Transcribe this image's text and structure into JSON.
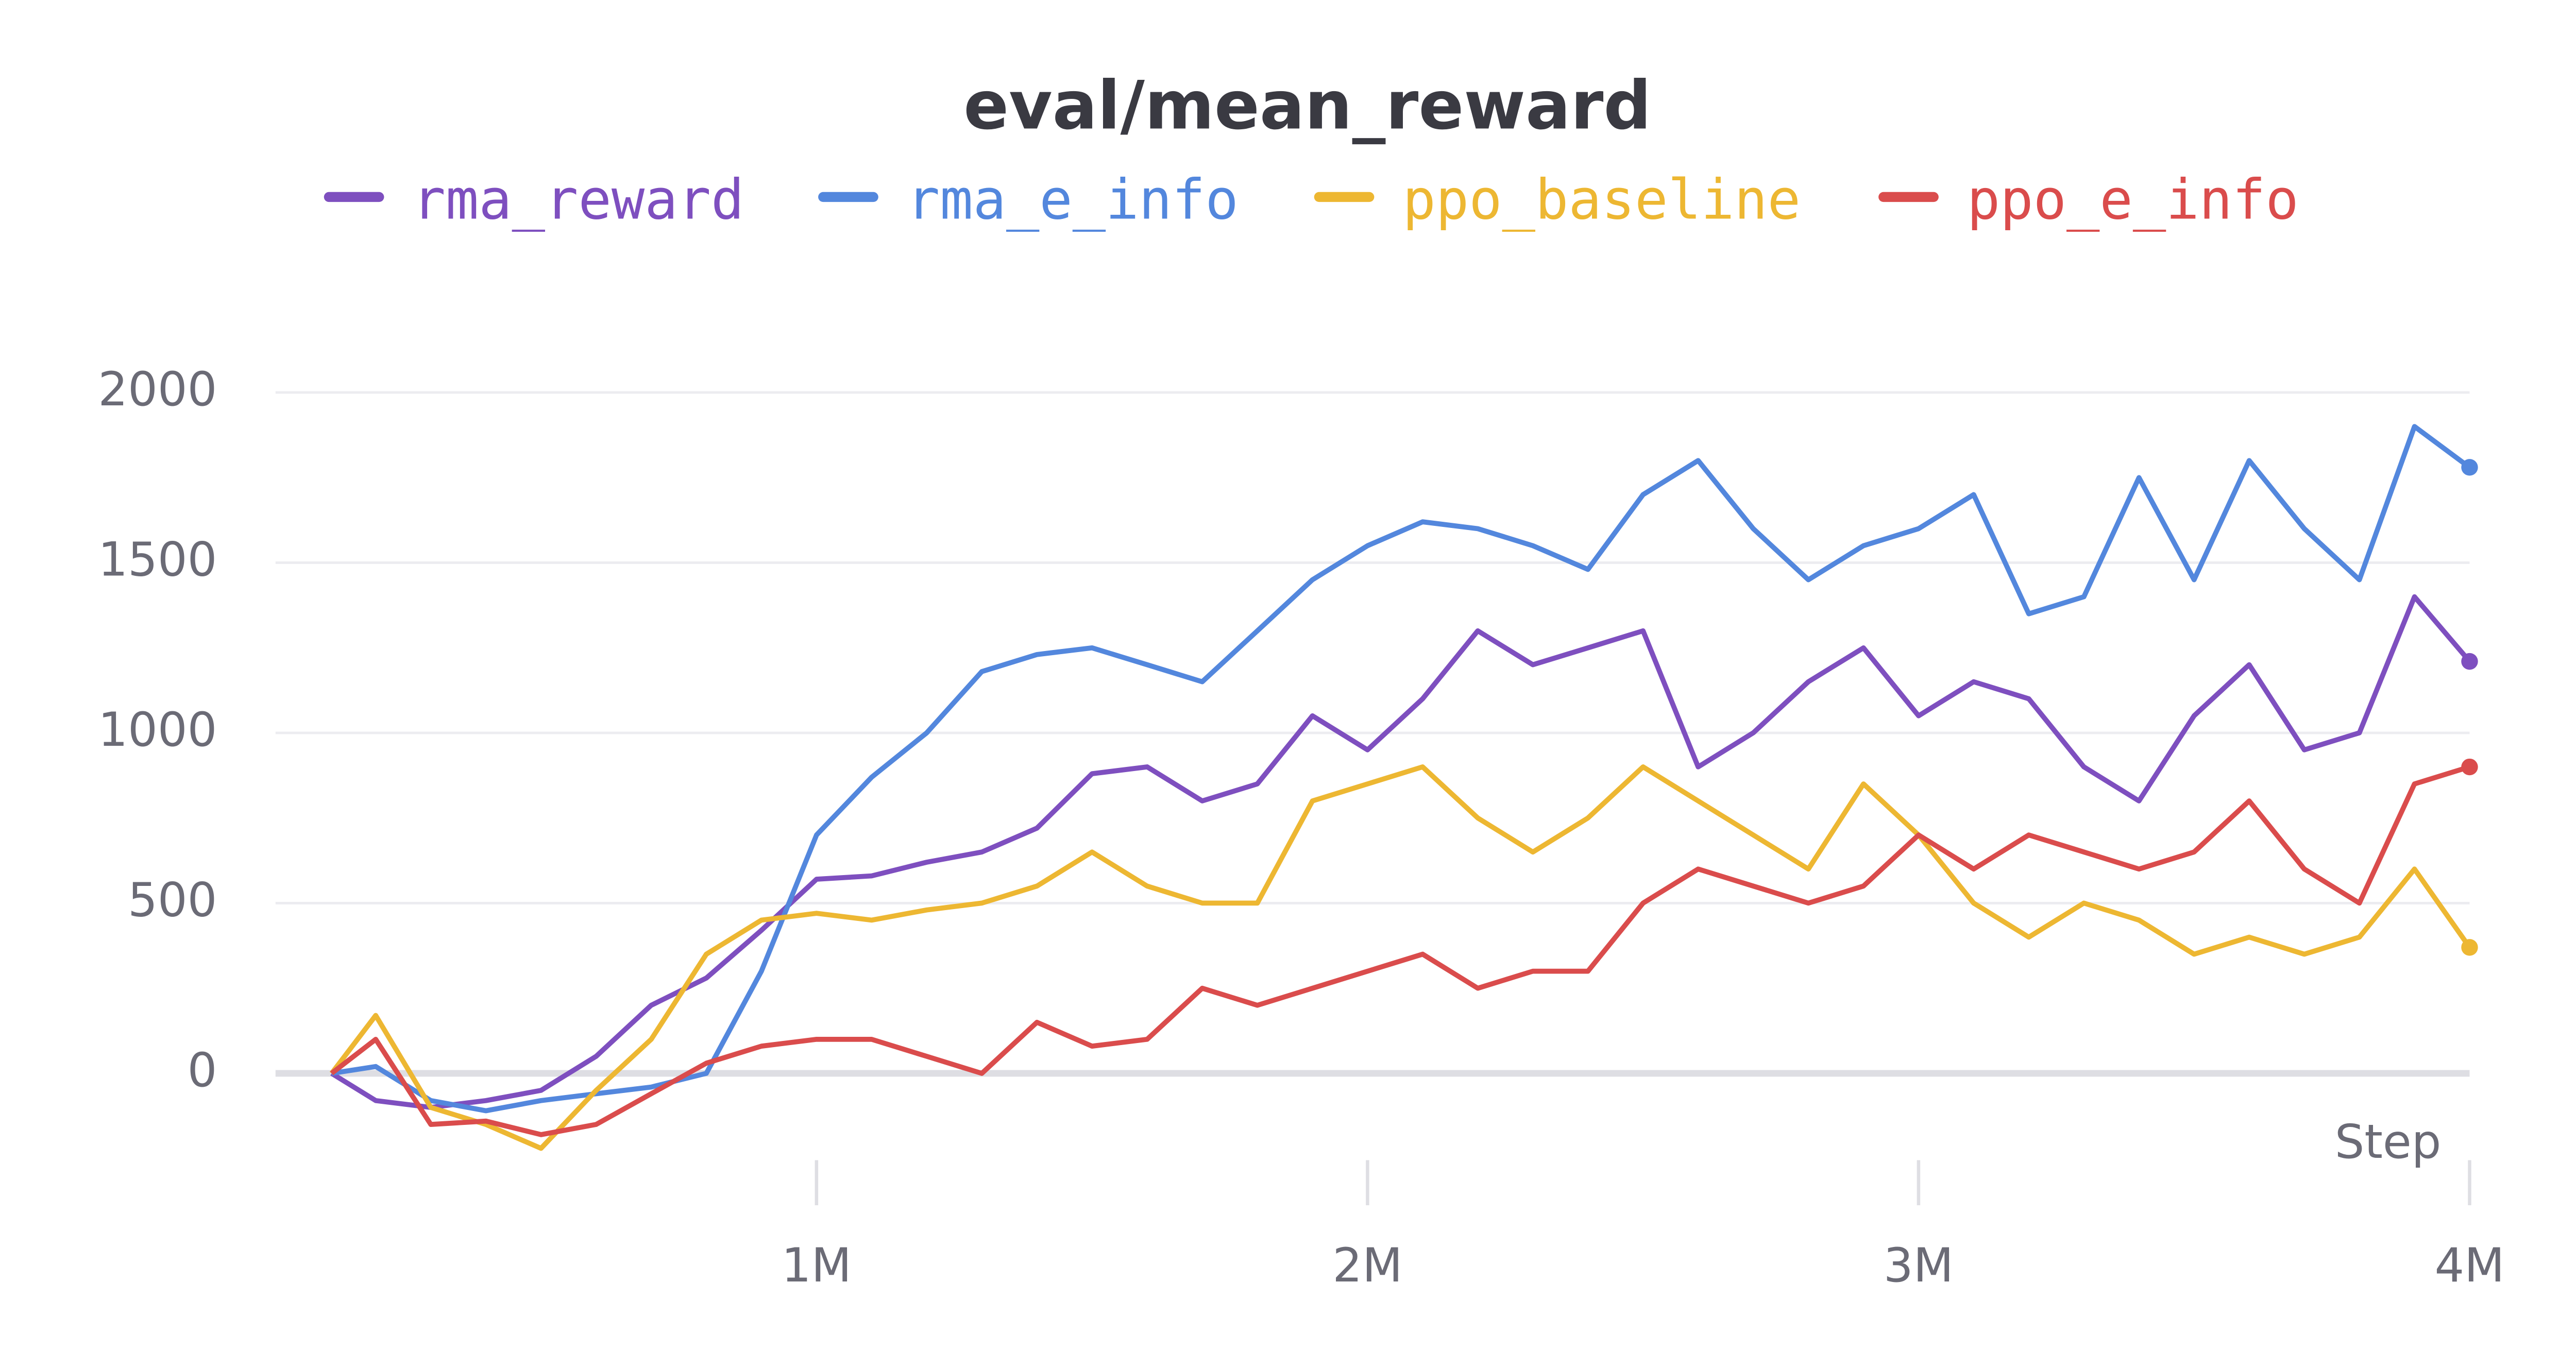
{
  "chart_data": {
    "type": "line",
    "title": "eval/mean_reward",
    "x_label": "Step",
    "x": [
      120000,
      200000,
      300000,
      400000,
      500000,
      600000,
      700000,
      800000,
      900000,
      1000000,
      1100000,
      1200000,
      1300000,
      1400000,
      1500000,
      1600000,
      1700000,
      1800000,
      1900000,
      2000000,
      2100000,
      2200000,
      2300000,
      2400000,
      2500000,
      2600000,
      2700000,
      2800000,
      2900000,
      3000000,
      3100000,
      3200000,
      3300000,
      3400000,
      3500000,
      3600000,
      3700000,
      3800000,
      3900000,
      4000000
    ],
    "series": [
      {
        "name": "rma_reward",
        "color": "#7e4fbf",
        "values": [
          0,
          -80,
          -100,
          -80,
          -50,
          50,
          200,
          280,
          420,
          570,
          580,
          620,
          650,
          720,
          880,
          900,
          800,
          850,
          1050,
          950,
          1100,
          1300,
          1200,
          1250,
          1300,
          900,
          1000,
          1150,
          1250,
          1050,
          1150,
          1100,
          900,
          800,
          1050,
          1200,
          950,
          1000,
          1400,
          1210
        ]
      },
      {
        "name": "rma_e_info",
        "color": "#5387dd",
        "values": [
          0,
          20,
          -80,
          -110,
          -80,
          -60,
          -40,
          0,
          300,
          700,
          870,
          1000,
          1180,
          1230,
          1250,
          1200,
          1150,
          1300,
          1450,
          1550,
          1620,
          1600,
          1550,
          1480,
          1700,
          1800,
          1600,
          1450,
          1550,
          1600,
          1700,
          1350,
          1400,
          1750,
          1450,
          1800,
          1600,
          1450,
          1900,
          1780
        ]
      },
      {
        "name": "ppo_baseline",
        "color": "#edb732",
        "values": [
          0,
          170,
          -100,
          -150,
          -220,
          -50,
          100,
          350,
          450,
          470,
          450,
          480,
          500,
          550,
          650,
          550,
          500,
          500,
          800,
          850,
          900,
          750,
          650,
          750,
          900,
          800,
          700,
          600,
          850,
          700,
          500,
          400,
          500,
          450,
          350,
          400,
          350,
          400,
          600,
          370
        ]
      },
      {
        "name": "ppo_e_info",
        "color": "#da4c4c",
        "values": [
          0,
          100,
          -150,
          -140,
          -180,
          -150,
          -60,
          30,
          80,
          100,
          100,
          50,
          0,
          150,
          80,
          100,
          250,
          200,
          250,
          300,
          350,
          250,
          300,
          300,
          500,
          600,
          550,
          500,
          550,
          700,
          600,
          700,
          650,
          600,
          650,
          800,
          600,
          500,
          850,
          900
        ]
      }
    ],
    "xlim": [
      0,
      4000000
    ],
    "xticks": [
      {
        "value": 1000000,
        "label": "1M"
      },
      {
        "value": 2000000,
        "label": "2M"
      },
      {
        "value": 3000000,
        "label": "3M"
      },
      {
        "value": 4000000,
        "label": "4M"
      }
    ],
    "ylim": [
      -380,
      2400
    ],
    "yticks": [
      0,
      500,
      1000,
      1500,
      2000
    ],
    "grid": true
  }
}
